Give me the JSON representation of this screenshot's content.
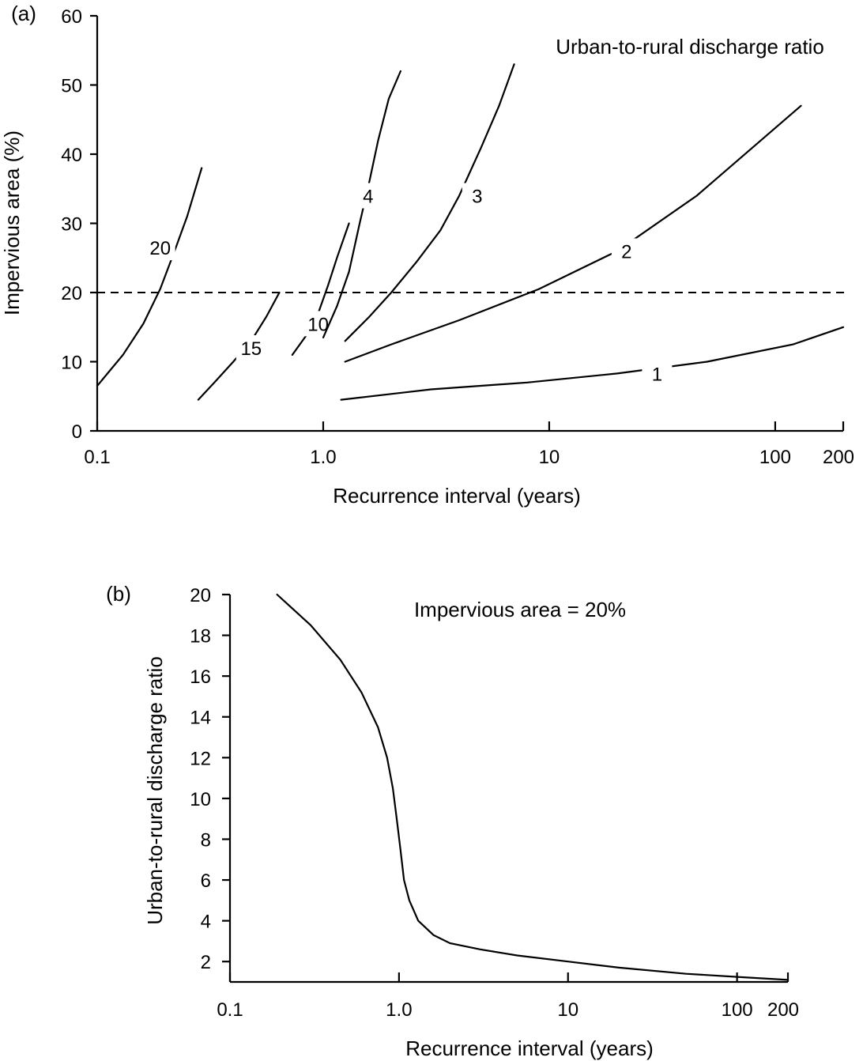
{
  "chart_data": [
    {
      "panel_label": "(a)",
      "type": "line",
      "xlabel": "Recurrence interval (years)",
      "ylabel": "Impervious area (%)",
      "xscale": "log",
      "xlim": [
        0.1,
        200
      ],
      "ylim": [
        0,
        60
      ],
      "xticks": [
        0.1,
        1.0,
        10,
        100,
        200
      ],
      "xtick_labels": [
        "0.1",
        "1.0",
        "10",
        "100",
        "200"
      ],
      "yticks": [
        0,
        10,
        20,
        30,
        40,
        50,
        60
      ],
      "ytick_labels": [
        "0",
        "10",
        "20",
        "30",
        "40",
        "50",
        "60"
      ],
      "annotation": "Urban-to-rural discharge ratio",
      "reference_line": {
        "y": 20,
        "style": "dashed"
      },
      "series": [
        {
          "name": "20",
          "label_at": [
            0.19,
            26.5
          ],
          "x": [
            0.1,
            0.13,
            0.16,
            0.19,
            0.22,
            0.25,
            0.29
          ],
          "y": [
            6.5,
            11,
            15.5,
            20.5,
            26,
            31,
            38
          ]
        },
        {
          "name": "15",
          "label_at": [
            0.48,
            12
          ],
          "x": [
            0.28,
            0.33,
            0.4,
            0.48,
            0.56,
            0.64
          ],
          "y": [
            4.5,
            7,
            10,
            13,
            16.5,
            20
          ]
        },
        {
          "name": "10",
          "label_at": [
            0.95,
            15.5
          ],
          "x": [
            0.73,
            0.85,
            0.95,
            1.05,
            1.15,
            1.3
          ],
          "y": [
            11,
            14,
            17,
            21,
            25,
            30
          ]
        },
        {
          "name": "4",
          "label_at": [
            1.58,
            34
          ],
          "x": [
            1.0,
            1.15,
            1.3,
            1.45,
            1.6,
            1.75,
            1.95,
            2.2
          ],
          "y": [
            13.5,
            18,
            23,
            30,
            36,
            42,
            48,
            52
          ]
        },
        {
          "name": "3",
          "label_at": [
            4.8,
            34
          ],
          "x": [
            1.25,
            1.6,
            2.0,
            2.6,
            3.3,
            4.0,
            5.0,
            6.0,
            7.0
          ],
          "y": [
            13,
            16.5,
            20,
            24.5,
            29,
            34,
            41,
            47,
            53
          ]
        },
        {
          "name": "2",
          "label_at": [
            22,
            26
          ],
          "x": [
            1.25,
            2,
            4,
            9,
            20,
            45,
            130
          ],
          "y": [
            10,
            12.5,
            16,
            20.5,
            26,
            34,
            47
          ]
        },
        {
          "name": "1",
          "label_at": [
            30,
            8.3
          ],
          "x": [
            1.2,
            3,
            8,
            20,
            50,
            120,
            200
          ],
          "y": [
            4.5,
            6,
            7,
            8.3,
            10,
            12.5,
            15
          ]
        }
      ]
    },
    {
      "panel_label": "(b)",
      "type": "line",
      "xlabel": "Recurrence interval (years)",
      "ylabel": "Urban-to-rural discharge ratio",
      "xscale": "log",
      "xlim": [
        0.1,
        200
      ],
      "ylim": [
        1,
        20
      ],
      "xticks": [
        0.1,
        1.0,
        10,
        100,
        200
      ],
      "xtick_labels": [
        "0.1",
        "1.0",
        "10",
        "100",
        "200"
      ],
      "yticks": [
        2,
        4,
        6,
        8,
        10,
        12,
        14,
        16,
        18,
        20
      ],
      "ytick_labels": [
        "2",
        "4",
        "6",
        "8",
        "10",
        "12",
        "14",
        "16",
        "18",
        "20"
      ],
      "annotation": "Impervious area = 20%",
      "series": [
        {
          "x": [
            0.19,
            0.3,
            0.45,
            0.6,
            0.75,
            0.85,
            0.92,
            0.97,
            1.02,
            1.07,
            1.15,
            1.3,
            1.6,
            2.0,
            3.0,
            5.0,
            10,
            20,
            50,
            100,
            200
          ],
          "y": [
            20,
            18.5,
            16.8,
            15.2,
            13.5,
            12,
            10.5,
            9,
            7.5,
            6,
            5,
            4,
            3.3,
            2.9,
            2.6,
            2.3,
            2.0,
            1.7,
            1.4,
            1.25,
            1.1
          ]
        }
      ]
    }
  ]
}
